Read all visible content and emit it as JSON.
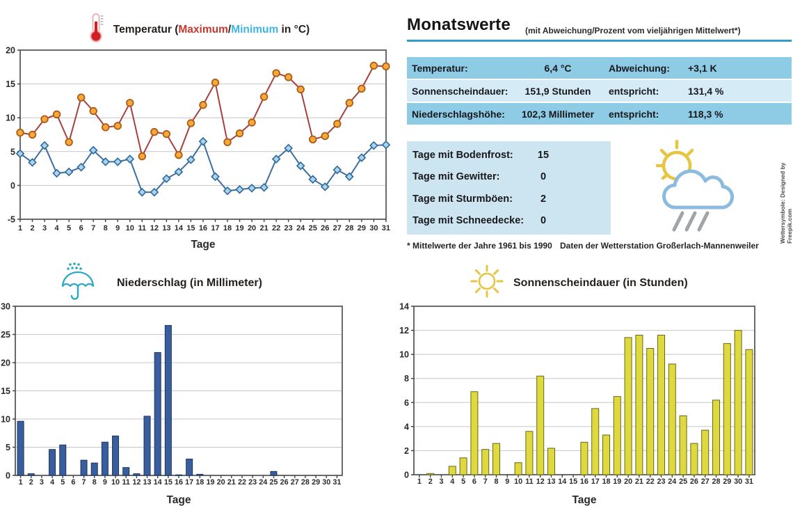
{
  "monatswerte": {
    "title": "Monatswerte",
    "subtitle": "(mit Abweichung/Prozent vom vieljährigen Mittelwert*)",
    "rows": [
      {
        "label": "Temperatur:",
        "value": "6,4 °C",
        "label2": "Abweichung:",
        "value2": "+3,1 K"
      },
      {
        "label": "Sonnenscheindauer:",
        "value": "151,9 Stunden",
        "label2": "entspricht:",
        "value2": "131,4 %"
      },
      {
        "label": "Niederschlagshöhe:",
        "value": "102,3 Millimeter",
        "label2": "entspricht:",
        "value2": "118,3 %"
      }
    ],
    "day_rows": [
      {
        "label": "Tage mit Bodenfrost:",
        "value": "15"
      },
      {
        "label": "Tage mit Gewitter:",
        "value": "0"
      },
      {
        "label": "Tage mit Sturmböen:",
        "value": "2"
      },
      {
        "label": "Tage mit Schneedecke:",
        "value": "0"
      }
    ],
    "footnote_left": "* Mittelwerte der Jahre 1961 bis 1990",
    "footnote_right": "Daten der Wetterstation Großerlach-Mannenweiler",
    "credit": "Wettersymbole: Designed by Freepik.com"
  },
  "colors": {
    "accent_rule": "#2f9ec9",
    "row_dark": "#8ecbe5",
    "row_light": "#d5ebf5",
    "box_light": "#cde5f0",
    "max_red": "#c23a2f",
    "min_cyan": "#3fb3e3"
  },
  "chart_data": [
    {
      "type": "line",
      "title": "Temperatur (Maximum/Minimum in °C)",
      "title_parts": {
        "prefix": "Temperatur (",
        "max": "Maximum",
        "sep": "/",
        "min": "Minimum",
        "suffix": " in °C)"
      },
      "xlabel": "Tage",
      "x": [
        1,
        2,
        3,
        4,
        5,
        6,
        7,
        8,
        9,
        10,
        11,
        12,
        13,
        14,
        15,
        16,
        17,
        18,
        19,
        20,
        21,
        22,
        23,
        24,
        25,
        26,
        27,
        28,
        29,
        30,
        31
      ],
      "ylim": [
        -5,
        20
      ],
      "ytick_step": 5,
      "yticks": [
        -5,
        0,
        5,
        10,
        15,
        20
      ],
      "series": [
        {
          "name": "Maximum",
          "color": "#a5403c",
          "marker": "circle",
          "marker_fill": "#f4a93a",
          "marker_stroke": "#ad5b14",
          "values": [
            7.8,
            7.5,
            9.8,
            10.5,
            6.4,
            13.0,
            11.0,
            8.6,
            8.8,
            12.2,
            4.3,
            7.9,
            7.6,
            4.5,
            9.2,
            11.9,
            15.2,
            6.4,
            7.7,
            9.3,
            13.1,
            16.6,
            16.0,
            14.2,
            6.8,
            7.3,
            9.1,
            12.2,
            14.3,
            17.7,
            17.6
          ]
        },
        {
          "name": "Minimum",
          "color": "#3c6e9f",
          "marker": "diamond",
          "marker_fill": "#abd3ea",
          "marker_stroke": "#2d689c",
          "values": [
            4.7,
            3.4,
            5.9,
            1.8,
            2.0,
            2.7,
            5.2,
            3.5,
            3.5,
            3.9,
            -1.0,
            -1.0,
            1.0,
            2.0,
            3.8,
            6.5,
            1.3,
            -0.8,
            -0.6,
            -0.4,
            -0.3,
            3.9,
            5.5,
            2.9,
            0.9,
            -0.2,
            2.3,
            1.3,
            4.1,
            5.9,
            6.0
          ]
        }
      ]
    },
    {
      "type": "bar",
      "title": "Niederschlag (in Millimeter)",
      "xlabel": "Tage",
      "categories": [
        1,
        2,
        3,
        4,
        5,
        6,
        7,
        8,
        9,
        10,
        11,
        12,
        13,
        14,
        15,
        16,
        17,
        18,
        19,
        20,
        21,
        22,
        23,
        24,
        25,
        26,
        27,
        28,
        29,
        30,
        31
      ],
      "ylim": [
        0,
        30
      ],
      "ytick_step": 5,
      "yticks": [
        0,
        5,
        10,
        15,
        20,
        25,
        30
      ],
      "bar_color": "#3a5e9d",
      "bar_border": "#17375d",
      "values": [
        9.6,
        0.3,
        0,
        4.6,
        5.4,
        0,
        2.7,
        2.2,
        5.9,
        7.0,
        1.4,
        0.3,
        10.5,
        21.8,
        26.6,
        0.1,
        2.9,
        0.2,
        0,
        0,
        0,
        0,
        0,
        0,
        0.7,
        0,
        0,
        0,
        0,
        0,
        0
      ]
    },
    {
      "type": "bar",
      "title": "Sonnenscheindauer (in Stunden)",
      "xlabel": "Tage",
      "categories": [
        1,
        2,
        3,
        4,
        5,
        6,
        7,
        8,
        9,
        10,
        11,
        12,
        13,
        14,
        15,
        16,
        17,
        18,
        19,
        20,
        21,
        22,
        23,
        24,
        25,
        26,
        27,
        28,
        29,
        30,
        31
      ],
      "ylim": [
        0,
        14
      ],
      "ytick_step": 2,
      "yticks": [
        0,
        2,
        4,
        6,
        8,
        10,
        12,
        14
      ],
      "bar_color": "#ded93e",
      "bar_border": "#6b661a",
      "values": [
        0,
        0.1,
        0,
        0.7,
        1.4,
        6.9,
        2.1,
        2.6,
        0,
        1.0,
        3.6,
        8.2,
        2.2,
        0,
        0,
        2.7,
        5.5,
        3.3,
        6.5,
        11.4,
        11.6,
        10.5,
        11.6,
        9.2,
        4.9,
        2.6,
        3.7,
        6.2,
        10.9,
        12.0,
        10.4
      ]
    }
  ]
}
